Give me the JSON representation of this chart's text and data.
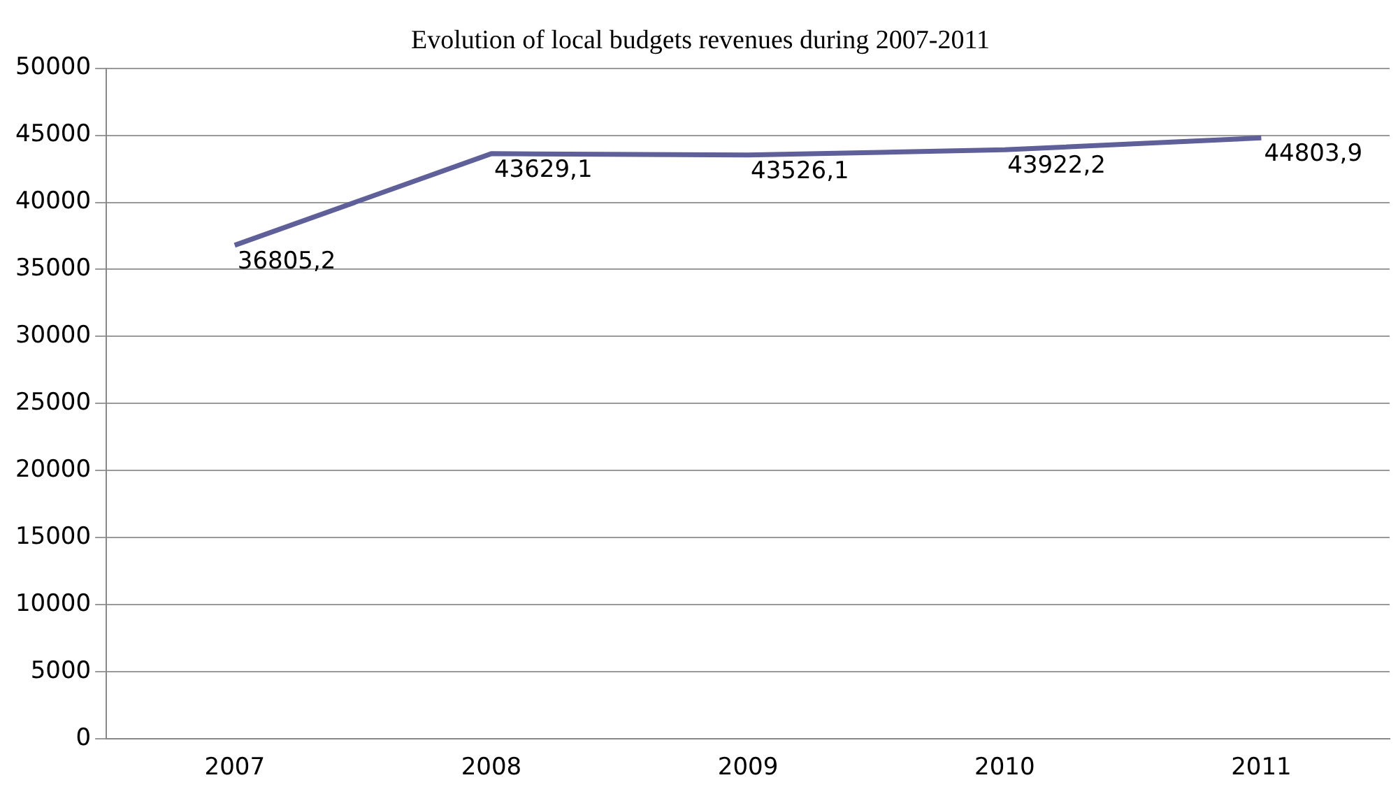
{
  "chart_data": {
    "type": "line",
    "title": "Evolution of local budgets revenues during 2007-2011",
    "categories": [
      "2007",
      "2008",
      "2009",
      "2010",
      "2011"
    ],
    "series": [
      {
        "color": "#5f5f99",
        "values": [
          36805.2,
          43629.1,
          43526.1,
          43922.2,
          44803.9
        ],
        "value_labels": [
          "36805,2",
          "43629,1",
          "43526,1",
          "43922,2",
          "44803,9"
        ]
      }
    ],
    "ylim": [
      0,
      50000
    ],
    "yticks": [
      0,
      5000,
      10000,
      15000,
      20000,
      25000,
      30000,
      35000,
      40000,
      45000,
      50000
    ],
    "grid": "y",
    "legend": false,
    "marker": "none",
    "line_style": "solid"
  }
}
